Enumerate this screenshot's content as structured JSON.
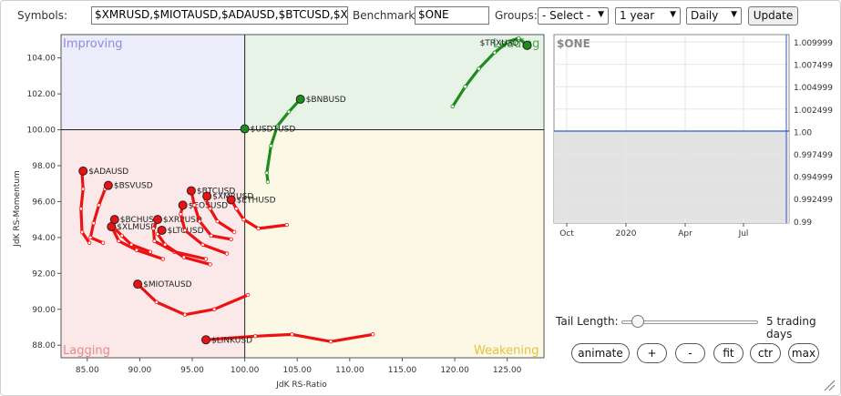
{
  "toolbar": {
    "symbols_label": "Symbols:",
    "symbols_value": "$XMRUSD,$MIOTAUSD,$ADAUSD,$BTCUSD,$XR",
    "benchmark_label": "Benchmark:",
    "benchmark_value": "$ONE",
    "groups_label": "Groups:",
    "groups_selected": "- Select -",
    "period_selected": "1 year",
    "frequency_selected": "Daily",
    "update_label": "Update"
  },
  "rrg": {
    "x_axis_title": "JdK RS-Ratio",
    "y_axis_title": "JdK RS-Momentum",
    "x_ticks": [
      "85.00",
      "90.00",
      "95.00",
      "100.00",
      "105.00",
      "110.00",
      "115.00",
      "120.00",
      "125.00"
    ],
    "y_ticks": [
      "104.00",
      "102.00",
      "100.00",
      "98.00",
      "96.00",
      "94.00",
      "92.00",
      "90.00",
      "88.00"
    ],
    "quadrants": {
      "improving": "Improving",
      "leading": "Leading",
      "lagging": "Lagging",
      "weakening": "Weakening"
    },
    "colors": {
      "improving_bg": "#ececfb",
      "leading_bg": "#e8f3e8",
      "lagging_bg": "#fbe8e8",
      "weakening_bg": "#fbf8e6",
      "lagging_tail": "#ee1111",
      "leading_tail": "#1c8c1c"
    }
  },
  "chart_data": {
    "type": "scatter",
    "title": "",
    "xlabel": "JdK RS-Ratio",
    "ylabel": "JdK RS-Momentum",
    "xlim": [
      82.5,
      128.5
    ],
    "ylim": [
      87.3,
      105.3
    ],
    "series": [
      {
        "name": "$TRXUSD",
        "color": "#1c8c1c",
        "points": [
          [
            119.8,
            101.3
          ],
          [
            121.0,
            102.4
          ],
          [
            122.3,
            103.4
          ],
          [
            123.8,
            104.3
          ],
          [
            125.1,
            104.9
          ],
          [
            126.1,
            105.1
          ],
          [
            126.9,
            104.7
          ]
        ]
      },
      {
        "name": "$BNBUSD",
        "color": "#1c8c1c",
        "points": [
          [
            102.2,
            97.1
          ],
          [
            102.1,
            97.6
          ],
          [
            102.5,
            99.1
          ],
          [
            103.1,
            100.2
          ],
          [
            104.2,
            101.0
          ],
          [
            105.3,
            101.7
          ]
        ]
      },
      {
        "name": "$USDTUSD",
        "color": "#1c8c1c",
        "points": [
          [
            100.0,
            100.05
          ]
        ]
      },
      {
        "name": "$ADAUSD",
        "color": "#ee1111",
        "points": [
          [
            85.2,
            93.7
          ],
          [
            84.5,
            94.3
          ],
          [
            84.4,
            95.6
          ],
          [
            84.6,
            96.7
          ],
          [
            84.5,
            97.6
          ],
          [
            84.6,
            97.7
          ]
        ]
      },
      {
        "name": "$BSVUSD",
        "color": "#ee1111",
        "points": [
          [
            86.5,
            93.7
          ],
          [
            85.3,
            94.0
          ],
          [
            85.6,
            94.8
          ],
          [
            86.1,
            95.8
          ],
          [
            86.7,
            96.7
          ],
          [
            87.0,
            96.9
          ]
        ]
      },
      {
        "name": "$BCHUSD",
        "color": "#ee1111",
        "points": [
          [
            92.2,
            92.8
          ],
          [
            89.7,
            93.3
          ],
          [
            88.0,
            93.8
          ],
          [
            87.4,
            94.5
          ],
          [
            87.6,
            95.0
          ]
        ]
      },
      {
        "name": "$XLMUSD",
        "color": "#ee1111",
        "points": [
          [
            91.0,
            93.2
          ],
          [
            89.2,
            93.6
          ],
          [
            88.3,
            94.1
          ],
          [
            87.6,
            94.5
          ],
          [
            87.3,
            94.6
          ]
        ]
      },
      {
        "name": "$XRPUSD",
        "color": "#ee1111",
        "points": [
          [
            96.3,
            92.8
          ],
          [
            93.3,
            93.2
          ],
          [
            91.4,
            93.8
          ],
          [
            91.3,
            94.5
          ],
          [
            91.7,
            95.0
          ]
        ]
      },
      {
        "name": "$LTCUSD",
        "color": "#ee1111",
        "points": [
          [
            96.7,
            92.5
          ],
          [
            94.2,
            92.9
          ],
          [
            92.4,
            93.6
          ],
          [
            91.7,
            94.2
          ],
          [
            92.1,
            94.4
          ]
        ]
      },
      {
        "name": "$EOSUSD",
        "color": "#ee1111",
        "points": [
          [
            98.3,
            93.1
          ],
          [
            96.0,
            93.6
          ],
          [
            94.3,
            94.4
          ],
          [
            93.9,
            95.3
          ],
          [
            94.1,
            95.8
          ]
        ]
      },
      {
        "name": "$BTCUSD",
        "color": "#ee1111",
        "points": [
          [
            98.7,
            93.9
          ],
          [
            96.8,
            94.1
          ],
          [
            95.7,
            94.9
          ],
          [
            95.2,
            95.8
          ],
          [
            94.9,
            96.6
          ]
        ]
      },
      {
        "name": "$XMRUSD",
        "color": "#ee1111",
        "points": [
          [
            99.0,
            94.3
          ],
          [
            97.4,
            94.9
          ],
          [
            96.7,
            95.6
          ],
          [
            96.3,
            96.1
          ],
          [
            96.4,
            96.3
          ]
        ]
      },
      {
        "name": "$ETHUSD",
        "color": "#ee1111",
        "points": [
          [
            104.0,
            94.7
          ],
          [
            101.3,
            94.5
          ],
          [
            99.9,
            95.0
          ],
          [
            99.2,
            95.6
          ],
          [
            98.7,
            96.1
          ]
        ]
      },
      {
        "name": "$MIOTAUSD",
        "color": "#ee1111",
        "points": [
          [
            100.3,
            90.8
          ],
          [
            97.1,
            90.0
          ],
          [
            94.3,
            89.7
          ],
          [
            91.6,
            90.4
          ],
          [
            89.8,
            91.4
          ]
        ]
      },
      {
        "name": "$LINKUSD",
        "color": "#ee1111",
        "points": [
          [
            112.2,
            88.6
          ],
          [
            108.2,
            88.2
          ],
          [
            104.5,
            88.6
          ],
          [
            101.0,
            88.5
          ],
          [
            96.3,
            88.3
          ]
        ]
      }
    ]
  },
  "mini_chart": {
    "title": "$ONE",
    "y_ticks": [
      "1.009999",
      "1.007499",
      "1.004999",
      "1.002499",
      "1.00",
      "0.997499",
      "0.994999",
      "0.992499",
      "0.99"
    ],
    "x_ticks": [
      "Oct",
      "2020",
      "Apr",
      "Jul"
    ],
    "current_value": 1.0
  },
  "controls": {
    "tail_label": "Tail Length:",
    "tail_value_text": "5 trading days",
    "tail_slider_fraction": 0.12,
    "buttons": [
      "animate",
      "+",
      "-",
      "fit",
      "ctr",
      "max"
    ]
  }
}
